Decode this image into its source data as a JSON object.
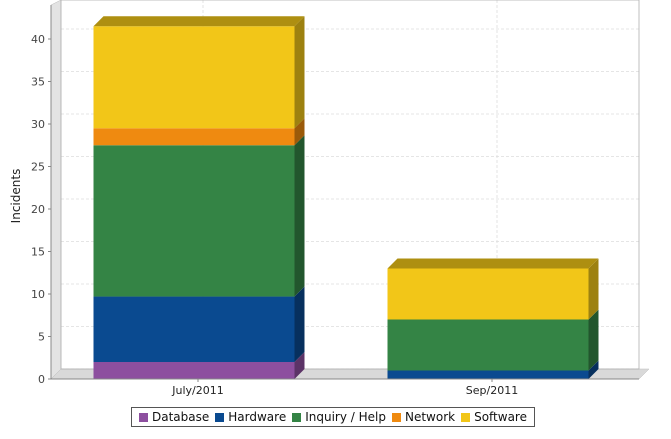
{
  "chart_data": {
    "type": "bar",
    "stacked": true,
    "three_d": true,
    "title": "",
    "xlabel": "",
    "ylabel": "Incidents",
    "ylim": [
      0,
      44
    ],
    "yticks": [
      0,
      5,
      10,
      15,
      20,
      25,
      30,
      35,
      40
    ],
    "grid": true,
    "legend_position": "bottom",
    "categories": [
      "July/2011",
      "Sep/2011"
    ],
    "series": [
      {
        "name": "Database",
        "color": "#8d4f9f",
        "values": [
          2,
          0
        ]
      },
      {
        "name": "Hardware",
        "color": "#0a4a90",
        "values": [
          7.7,
          1
        ]
      },
      {
        "name": "Inquiry / Help",
        "color": "#348445",
        "values": [
          17.8,
          6
        ]
      },
      {
        "name": "Network",
        "color": "#ef8a10",
        "values": [
          2,
          0
        ]
      },
      {
        "name": "Software",
        "color": "#f2c618",
        "values": [
          12,
          6
        ]
      }
    ]
  }
}
